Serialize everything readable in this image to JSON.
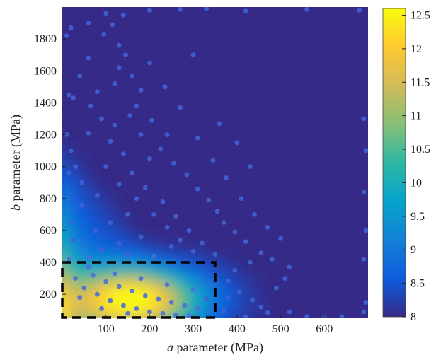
{
  "chart_data": {
    "type": "heatmap",
    "title": "",
    "xlabel": {
      "italic": "a",
      "rest": " parameter (MPa)"
    },
    "ylabel": {
      "italic": "b",
      "rest": " parameter (MPa)"
    },
    "xlim": [
      0,
      700
    ],
    "ylim": [
      50,
      2000
    ],
    "xticks": [
      100,
      200,
      300,
      400,
      500,
      600
    ],
    "yticks": [
      200,
      400,
      600,
      800,
      1000,
      1200,
      1400,
      1600,
      1800
    ],
    "colorbar": {
      "min": 8,
      "max": 12.6,
      "ticks": [
        8,
        8.5,
        9,
        9.5,
        10,
        10.5,
        11,
        11.5,
        12,
        12.5
      ],
      "colormap": [
        "#352a87",
        "#0f5cdd",
        "#1481d6",
        "#06a4ca",
        "#2eb7a4",
        "#87bf77",
        "#d1bb59",
        "#fec832",
        "#f9fb0e"
      ]
    },
    "peak": {
      "a": 170,
      "b": 170,
      "value": 12.5
    },
    "highlight_region": {
      "a": [
        0,
        350
      ],
      "b": [
        50,
        400
      ],
      "style": "dashed",
      "color": "#000000"
    },
    "sample_points": [
      [
        20,
        1870
      ],
      [
        60,
        1900
      ],
      [
        100,
        1960
      ],
      [
        115,
        1890
      ],
      [
        95,
        1830
      ],
      [
        130,
        1760
      ],
      [
        145,
        1700
      ],
      [
        130,
        1620
      ],
      [
        160,
        1570
      ],
      [
        180,
        1480
      ],
      [
        170,
        1380
      ],
      [
        205,
        1290
      ],
      [
        240,
        1200
      ],
      [
        225,
        1110
      ],
      [
        255,
        1020
      ],
      [
        285,
        950
      ],
      [
        310,
        860
      ],
      [
        335,
        790
      ],
      [
        355,
        720
      ],
      [
        370,
        650
      ],
      [
        395,
        590
      ],
      [
        420,
        530
      ],
      [
        455,
        460
      ],
      [
        430,
        400
      ],
      [
        395,
        350
      ],
      [
        380,
        285
      ],
      [
        405,
        215
      ],
      [
        435,
        165
      ],
      [
        455,
        120
      ],
      [
        470,
        85
      ],
      [
        60,
        1680
      ],
      [
        40,
        1570
      ],
      [
        25,
        1430
      ],
      [
        65,
        1380
      ],
      [
        90,
        1300
      ],
      [
        60,
        1210
      ],
      [
        110,
        1160
      ],
      [
        140,
        1080
      ],
      [
        100,
        1000
      ],
      [
        160,
        960
      ],
      [
        130,
        890
      ],
      [
        190,
        870
      ],
      [
        170,
        800
      ],
      [
        230,
        780
      ],
      [
        210,
        700
      ],
      [
        260,
        690
      ],
      [
        240,
        620
      ],
      [
        290,
        600
      ],
      [
        270,
        540
      ],
      [
        320,
        520
      ],
      [
        300,
        470
      ],
      [
        350,
        450
      ],
      [
        180,
        560
      ],
      [
        130,
        520
      ],
      [
        90,
        480
      ],
      [
        60,
        430
      ],
      [
        150,
        450
      ],
      [
        210,
        440
      ],
      [
        250,
        500
      ],
      [
        75,
        600
      ],
      [
        110,
        650
      ],
      [
        150,
        700
      ],
      [
        45,
        760
      ],
      [
        80,
        820
      ],
      [
        45,
        900
      ],
      [
        30,
        1000
      ],
      [
        20,
        1100
      ],
      [
        200,
        1050
      ],
      [
        180,
        1200
      ],
      [
        120,
        1260
      ],
      [
        155,
        1320
      ],
      [
        80,
        1470
      ],
      [
        120,
        1520
      ],
      [
        200,
        1650
      ],
      [
        235,
        1500
      ],
      [
        270,
        1370
      ],
      [
        310,
        1180
      ],
      [
        345,
        1040
      ],
      [
        375,
        930
      ],
      [
        410,
        800
      ],
      [
        440,
        700
      ],
      [
        470,
        620
      ],
      [
        500,
        550
      ],
      [
        480,
        420
      ],
      [
        520,
        370
      ],
      [
        510,
        300
      ],
      [
        490,
        240
      ],
      [
        30,
        300
      ],
      [
        50,
        240
      ],
      [
        80,
        200
      ],
      [
        110,
        160
      ],
      [
        140,
        130
      ],
      [
        170,
        110
      ],
      [
        200,
        90
      ],
      [
        230,
        80
      ],
      [
        260,
        70
      ],
      [
        290,
        65
      ],
      [
        70,
        320
      ],
      [
        100,
        280
      ],
      [
        130,
        250
      ],
      [
        160,
        220
      ],
      [
        190,
        190
      ],
      [
        220,
        170
      ],
      [
        250,
        150
      ],
      [
        280,
        130
      ],
      [
        310,
        110
      ],
      [
        40,
        180
      ],
      [
        90,
        110
      ],
      [
        150,
        80
      ],
      [
        60,
        370
      ],
      [
        120,
        330
      ],
      [
        180,
        300
      ],
      [
        240,
        260
      ],
      [
        300,
        230
      ],
      [
        330,
        170
      ],
      [
        350,
        120
      ],
      [
        370,
        95
      ],
      [
        380,
        180
      ],
      [
        20,
        650
      ],
      [
        25,
        540
      ],
      [
        140,
        1950
      ],
      [
        200,
        1980
      ],
      [
        270,
        1985
      ],
      [
        330,
        1990
      ],
      [
        420,
        1975
      ],
      [
        560,
        1985
      ],
      [
        680,
        1980
      ],
      [
        690,
        1300
      ],
      [
        695,
        1100
      ],
      [
        690,
        840
      ],
      [
        695,
        600
      ],
      [
        690,
        420
      ],
      [
        695,
        150
      ],
      [
        690,
        90
      ],
      [
        10,
        1200
      ],
      [
        10,
        1820
      ],
      [
        15,
        1450
      ],
      [
        15,
        960
      ],
      [
        15,
        420
      ],
      [
        360,
        1270
      ],
      [
        400,
        1150
      ],
      [
        430,
        1000
      ],
      [
        300,
        1700
      ],
      [
        520,
        90
      ],
      [
        560,
        60
      ],
      [
        600,
        55
      ],
      [
        640,
        60
      ],
      [
        420,
        60
      ]
    ]
  }
}
